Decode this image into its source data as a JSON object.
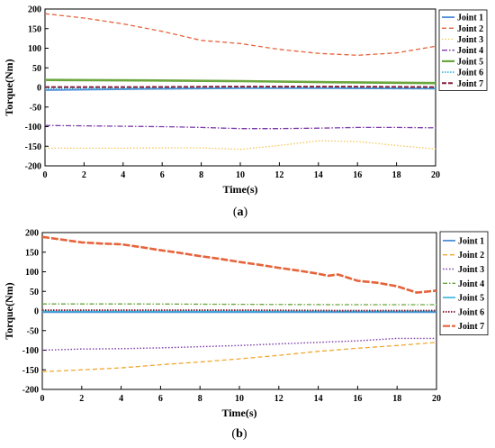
{
  "chart_data": [
    {
      "type": "line",
      "panel_label": "a",
      "xlabel": "Time(s)",
      "ylabel": "Torque(Nm)",
      "xlim": [
        0,
        20
      ],
      "ylim": [
        -200,
        200
      ],
      "x_ticks": [
        0,
        2,
        4,
        6,
        8,
        10,
        12,
        14,
        16,
        18,
        20
      ],
      "y_ticks": [
        200,
        150,
        100,
        50,
        0,
        -50,
        -100,
        -150,
        -200
      ],
      "grid": false,
      "legend": "right",
      "series": [
        {
          "name": "Joint 1",
          "color": "#4f8fd6",
          "dash": "",
          "width": 1.8,
          "x": [
            0,
            5,
            10,
            15,
            20
          ],
          "y": [
            -7,
            -4,
            -2,
            -2,
            -3
          ]
        },
        {
          "name": "Joint 2",
          "color": "#e5633a",
          "dash": "5,3",
          "width": 1.3,
          "x": [
            0,
            2,
            4,
            6,
            8,
            10,
            12,
            14,
            16,
            18,
            20
          ],
          "y": [
            188,
            177,
            162,
            143,
            120,
            112,
            97,
            87,
            82,
            88,
            105
          ]
        },
        {
          "name": "Joint 3",
          "color": "#f5c65a",
          "dash": "1.5,2",
          "width": 1.3,
          "x": [
            0,
            2,
            4,
            6,
            8,
            10,
            12,
            14,
            16,
            18,
            20
          ],
          "y": [
            -155,
            -155,
            -155,
            -154,
            -154,
            -158,
            -148,
            -136,
            -138,
            -148,
            -157
          ]
        },
        {
          "name": "Joint 4",
          "color": "#7b3aa8",
          "dash": "6,2,1.5,2",
          "width": 1.3,
          "x": [
            0,
            2,
            4,
            6,
            8,
            10,
            12,
            14,
            16,
            18,
            20
          ],
          "y": [
            -97,
            -98,
            -99,
            -100,
            -102,
            -105,
            -105,
            -104,
            -102,
            -102,
            -103
          ]
        },
        {
          "name": "Joint 5",
          "color": "#6aa63c",
          "dash": "",
          "width": 2.6,
          "x": [
            0,
            5,
            10,
            15,
            20
          ],
          "y": [
            19,
            18,
            16,
            13,
            11
          ]
        },
        {
          "name": "Joint 6",
          "color": "#37b4dc",
          "dash": "1.5,1.5",
          "width": 1.6,
          "x": [
            0,
            5,
            10,
            15,
            20
          ],
          "y": [
            -3,
            -2,
            -1,
            -1,
            -2
          ]
        },
        {
          "name": "Joint 7",
          "color": "#8a1f3a",
          "dash": "5,2",
          "width": 2,
          "x": [
            0,
            5,
            10,
            15,
            20
          ],
          "y": [
            1,
            1,
            2,
            2,
            1
          ]
        }
      ]
    },
    {
      "type": "line",
      "panel_label": "b",
      "xlabel": "Time(s)",
      "ylabel": "Torque(Nm)",
      "xlim": [
        0,
        20
      ],
      "ylim": [
        -200,
        200
      ],
      "x_ticks": [
        0,
        2,
        4,
        6,
        8,
        10,
        12,
        14,
        16,
        18,
        20
      ],
      "y_ticks": [
        200,
        150,
        100,
        50,
        0,
        -50,
        -100,
        -150,
        -200
      ],
      "grid": false,
      "legend": "right",
      "series": [
        {
          "name": "Joint 1",
          "color": "#4f8fd6",
          "dash": "",
          "width": 1.8,
          "x": [
            0,
            5,
            10,
            15,
            20
          ],
          "y": [
            -3,
            -3,
            -3,
            -3,
            -3
          ]
        },
        {
          "name": "Joint 2",
          "color": "#f0a830",
          "dash": "5,3",
          "width": 1.3,
          "x": [
            0,
            2,
            4,
            6,
            8,
            10,
            12,
            14,
            16,
            18,
            20
          ],
          "y": [
            -155,
            -150,
            -145,
            -137,
            -130,
            -122,
            -113,
            -103,
            -95,
            -88,
            -80
          ]
        },
        {
          "name": "Joint 3",
          "color": "#7b3aa8",
          "dash": "1.5,2",
          "width": 1.4,
          "x": [
            0,
            2,
            4,
            6,
            8,
            10,
            12,
            14,
            16,
            18,
            20
          ],
          "y": [
            -100,
            -97,
            -96,
            -94,
            -91,
            -88,
            -84,
            -80,
            -76,
            -70,
            -70
          ]
        },
        {
          "name": "Joint 4",
          "color": "#6aa63c",
          "dash": "5,2,1.5,2",
          "width": 1.3,
          "x": [
            0,
            5,
            10,
            15,
            20
          ],
          "y": [
            18,
            18,
            17,
            16,
            16
          ]
        },
        {
          "name": "Joint 5",
          "color": "#37b4dc",
          "dash": "",
          "width": 1.6,
          "x": [
            0,
            5,
            10,
            15,
            20
          ],
          "y": [
            -1,
            -1,
            -1,
            -1,
            -1
          ]
        },
        {
          "name": "Joint 6",
          "color": "#8a1f3a",
          "dash": "1.5,1.5",
          "width": 2,
          "x": [
            0,
            5,
            10,
            15,
            20
          ],
          "y": [
            2,
            2,
            2,
            1,
            1
          ]
        },
        {
          "name": "Joint 7",
          "color": "#e5633a",
          "dash": "8,2",
          "width": 2.6,
          "x": [
            0,
            1,
            2,
            3,
            4,
            5,
            6,
            7,
            8,
            9,
            10,
            11,
            12,
            13,
            14,
            14.5,
            15,
            16,
            17,
            18,
            18.5,
            19,
            20
          ],
          "y": [
            189,
            182,
            175,
            172,
            170,
            163,
            155,
            148,
            140,
            133,
            125,
            118,
            110,
            103,
            95,
            90,
            93,
            77,
            72,
            63,
            55,
            47,
            52
          ]
        }
      ]
    }
  ]
}
